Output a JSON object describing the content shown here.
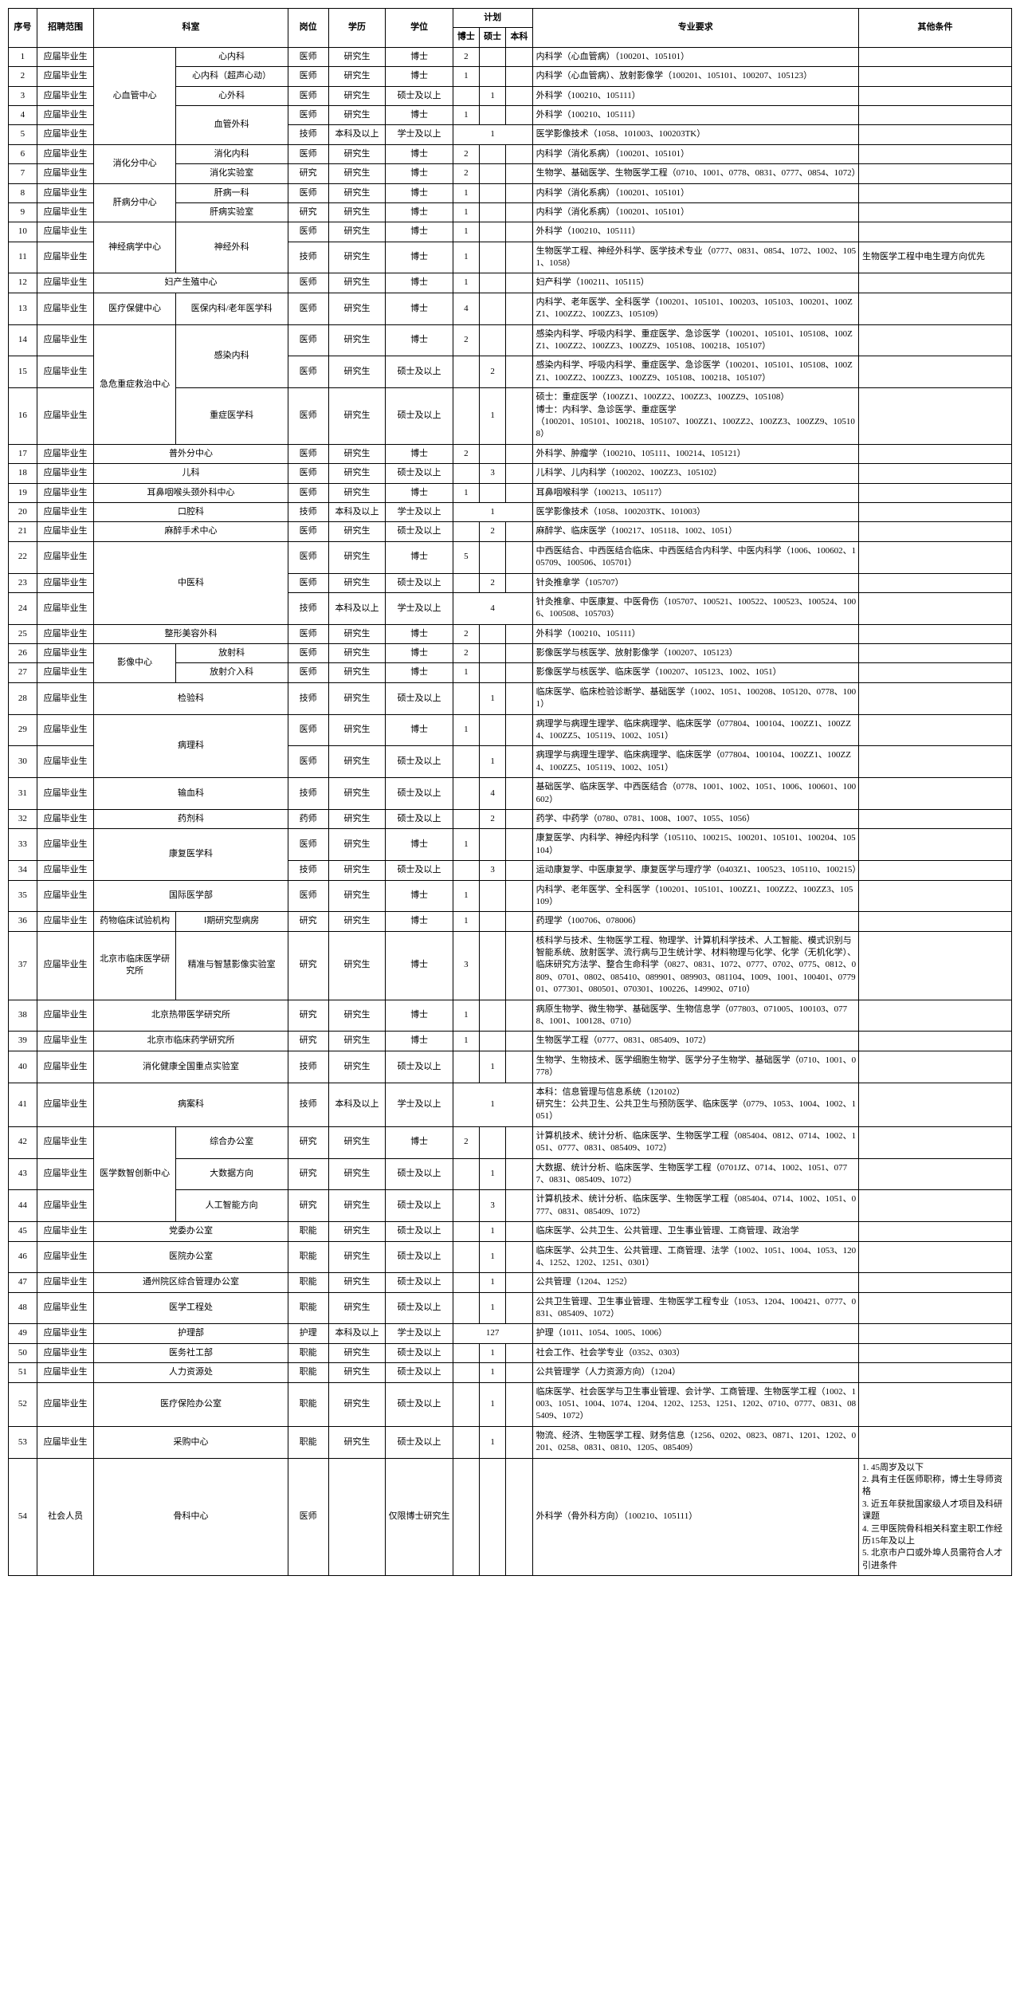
{
  "headers": {
    "seq": "序号",
    "scope": "招聘范围",
    "dept": "科室",
    "post": "岗位",
    "edu": "学历",
    "degree": "学位",
    "plan": "计划",
    "phd": "博士",
    "ms": "硕士",
    "bs": "本科",
    "req": "专业要求",
    "other": "其他条件"
  },
  "rows": [
    {
      "n": "1",
      "scope": "应届毕业生",
      "dept_main": "心血管中心",
      "dept_sub": "心内科",
      "post": "医师",
      "edu": "研究生",
      "deg": "博士",
      "phd": "2",
      "ms": "",
      "bs": "",
      "req": "内科学（心血管病）（100201、105101）",
      "other": ""
    },
    {
      "n": "2",
      "scope": "应届毕业生",
      "dept_sub": "心内科（超声心动）",
      "post": "医师",
      "edu": "研究生",
      "deg": "博士",
      "phd": "1",
      "ms": "",
      "bs": "",
      "req": "内科学（心血管病）、放射影像学（100201、105101、100207、105123）",
      "other": ""
    },
    {
      "n": "3",
      "scope": "应届毕业生",
      "dept_sub": "心外科",
      "post": "医师",
      "edu": "研究生",
      "deg": "硕士及以上",
      "phd": "",
      "ms": "1",
      "bs": "",
      "req": "外科学（100210、105111）",
      "other": ""
    },
    {
      "n": "4",
      "scope": "应届毕业生",
      "dept_sub": "血管外科",
      "post": "医师",
      "edu": "研究生",
      "deg": "博士",
      "phd": "1",
      "ms": "",
      "bs": "",
      "req": "外科学（100210、105111）",
      "other": ""
    },
    {
      "n": "5",
      "scope": "应届毕业生",
      "dept_sub": "",
      "post": "技师",
      "edu": "本科及以上",
      "deg": "学士及以上",
      "plan_merge": "1",
      "req": "医学影像技术（1058、101003、100203TK）",
      "other": ""
    },
    {
      "n": "6",
      "scope": "应届毕业生",
      "dept_main": "消化分中心",
      "dept_sub": "消化内科",
      "post": "医师",
      "edu": "研究生",
      "deg": "博士",
      "phd": "2",
      "ms": "",
      "bs": "",
      "req": "内科学（消化系病）（100201、105101）",
      "other": ""
    },
    {
      "n": "7",
      "scope": "应届毕业生",
      "dept_sub": "消化实验室",
      "post": "研究",
      "edu": "研究生",
      "deg": "博士",
      "phd": "2",
      "ms": "",
      "bs": "",
      "req": "生物学、基础医学、生物医学工程（0710、1001、0778、0831、0777、0854、1072）",
      "other": ""
    },
    {
      "n": "8",
      "scope": "应届毕业生",
      "dept_main": "肝病分中心",
      "dept_sub": "肝病一科",
      "post": "医师",
      "edu": "研究生",
      "deg": "博士",
      "phd": "1",
      "ms": "",
      "bs": "",
      "req": "内科学（消化系病）（100201、105101）",
      "other": ""
    },
    {
      "n": "9",
      "scope": "应届毕业生",
      "dept_sub": "肝病实验室",
      "post": "研究",
      "edu": "研究生",
      "deg": "博士",
      "phd": "1",
      "ms": "",
      "bs": "",
      "req": "内科学（消化系病）（100201、105101）",
      "other": ""
    },
    {
      "n": "10",
      "scope": "应届毕业生",
      "dept_main": "神经病学中心",
      "dept_sub": "神经外科",
      "post": "医师",
      "edu": "研究生",
      "deg": "博士",
      "phd": "1",
      "ms": "",
      "bs": "",
      "req": "外科学（100210、105111）",
      "other": ""
    },
    {
      "n": "11",
      "scope": "应届毕业生",
      "dept_sub": "",
      "post": "技师",
      "edu": "研究生",
      "deg": "博士",
      "phd": "1",
      "ms": "",
      "bs": "",
      "req": "生物医学工程、神经外科学、医学技术专业（0777、0831、0854、1072、1002、1051、1058）",
      "other": "生物医学工程中电生理方向优先"
    },
    {
      "n": "12",
      "scope": "应届毕业生",
      "dept_full": "妇产生殖中心",
      "post": "医师",
      "edu": "研究生",
      "deg": "博士",
      "phd": "1",
      "ms": "",
      "bs": "",
      "req": "妇产科学（100211、105115）",
      "other": ""
    },
    {
      "n": "13",
      "scope": "应届毕业生",
      "dept_main": "医疗保健中心",
      "dept_sub": "医保内科/老年医学科",
      "post": "医师",
      "edu": "研究生",
      "deg": "博士",
      "phd": "4",
      "ms": "",
      "bs": "",
      "req": "内科学、老年医学、全科医学（100201、105101、100203、105103、100201、100ZZ1、100ZZ2、100ZZ3、105109）",
      "other": ""
    },
    {
      "n": "14",
      "scope": "应届毕业生",
      "dept_main": "急危重症救治中心",
      "dept_sub": "感染内科",
      "post": "医师",
      "edu": "研究生",
      "deg": "博士",
      "phd": "2",
      "ms": "",
      "bs": "",
      "req": "感染内科学、呼吸内科学、重症医学、急诊医学（100201、105101、105108、100ZZ1、100ZZ2、100ZZ3、100ZZ9、105108、100218、105107）",
      "other": ""
    },
    {
      "n": "15",
      "scope": "应届毕业生",
      "dept_sub": "",
      "post": "医师",
      "edu": "研究生",
      "deg": "硕士及以上",
      "phd": "",
      "ms": "2",
      "bs": "",
      "req": "感染内科学、呼吸内科学、重症医学、急诊医学（100201、105101、105108、100ZZ1、100ZZ2、100ZZ3、100ZZ9、105108、100218、105107）",
      "other": ""
    },
    {
      "n": "16",
      "scope": "应届毕业生",
      "dept_sub": "重症医学科",
      "post": "医师",
      "edu": "研究生",
      "deg": "硕士及以上",
      "phd": "",
      "ms": "1",
      "bs": "",
      "req": "硕士：重症医学（100ZZ1、100ZZ2、100ZZ3、100ZZ9、105108）\n博士：内科学、急诊医学、重症医学\n（100201、105101、100218、105107、100ZZ1、100ZZ2、100ZZ3、100ZZ9、105108）",
      "other": ""
    },
    {
      "n": "17",
      "scope": "应届毕业生",
      "dept_full": "普外分中心",
      "post": "医师",
      "edu": "研究生",
      "deg": "博士",
      "phd": "2",
      "ms": "",
      "bs": "",
      "req": "外科学、肿瘤学（100210、105111、100214、105121）",
      "other": ""
    },
    {
      "n": "18",
      "scope": "应届毕业生",
      "dept_full": "儿科",
      "post": "医师",
      "edu": "研究生",
      "deg": "硕士及以上",
      "phd": "",
      "ms": "3",
      "bs": "",
      "req": "儿科学、儿内科学（100202、100ZZ3、105102）",
      "other": ""
    },
    {
      "n": "19",
      "scope": "应届毕业生",
      "dept_full": "耳鼻咽喉头颈外科中心",
      "post": "医师",
      "edu": "研究生",
      "deg": "博士",
      "phd": "1",
      "ms": "",
      "bs": "",
      "req": "耳鼻咽喉科学（100213、105117）",
      "other": ""
    },
    {
      "n": "20",
      "scope": "应届毕业生",
      "dept_full": "口腔科",
      "post": "技师",
      "edu": "本科及以上",
      "deg": "学士及以上",
      "plan_merge": "1",
      "req": "医学影像技术（1058、100203TK、101003）",
      "other": ""
    },
    {
      "n": "21",
      "scope": "应届毕业生",
      "dept_full": "麻醉手术中心",
      "post": "医师",
      "edu": "研究生",
      "deg": "硕士及以上",
      "phd": "",
      "ms": "2",
      "bs": "",
      "req": "麻醉学、临床医学（100217、105118、1002、1051）",
      "other": ""
    },
    {
      "n": "22",
      "scope": "应届毕业生",
      "dept_full": "中医科",
      "post": "医师",
      "edu": "研究生",
      "deg": "博士",
      "phd": "5",
      "ms": "",
      "bs": "",
      "req": "中西医结合、中西医结合临床、中西医结合内科学、中医内科学（1006、100602、105709、100506、105701）",
      "other": ""
    },
    {
      "n": "23",
      "scope": "应届毕业生",
      "post": "医师",
      "edu": "研究生",
      "deg": "硕士及以上",
      "phd": "",
      "ms": "2",
      "bs": "",
      "req": "针灸推拿学（105707）",
      "other": ""
    },
    {
      "n": "24",
      "scope": "应届毕业生",
      "post": "技师",
      "edu": "本科及以上",
      "deg": "学士及以上",
      "plan_merge": "4",
      "req": "针灸推拿、中医康复、中医骨伤（105707、100521、100522、100523、100524、1006、100508、105703）",
      "other": ""
    },
    {
      "n": "25",
      "scope": "应届毕业生",
      "dept_full": "整形美容外科",
      "post": "医师",
      "edu": "研究生",
      "deg": "博士",
      "phd": "2",
      "ms": "",
      "bs": "",
      "req": "外科学（100210、105111）",
      "other": ""
    },
    {
      "n": "26",
      "scope": "应届毕业生",
      "dept_main": "影像中心",
      "dept_sub": "放射科",
      "post": "医师",
      "edu": "研究生",
      "deg": "博士",
      "phd": "2",
      "ms": "",
      "bs": "",
      "req": "影像医学与核医学、放射影像学（100207、105123）",
      "other": ""
    },
    {
      "n": "27",
      "scope": "应届毕业生",
      "dept_sub": "放射介入科",
      "post": "医师",
      "edu": "研究生",
      "deg": "博士",
      "phd": "1",
      "ms": "",
      "bs": "",
      "req": "影像医学与核医学、临床医学（100207、105123、1002、1051）",
      "other": ""
    },
    {
      "n": "28",
      "scope": "应届毕业生",
      "dept_full": "检验科",
      "post": "技师",
      "edu": "研究生",
      "deg": "硕士及以上",
      "phd": "",
      "ms": "1",
      "bs": "",
      "req": "临床医学、临床检验诊断学、基础医学（1002、1051、100208、105120、0778、1001）",
      "other": ""
    },
    {
      "n": "29",
      "scope": "应届毕业生",
      "dept_full": "病理科",
      "post": "医师",
      "edu": "研究生",
      "deg": "博士",
      "phd": "1",
      "ms": "",
      "bs": "",
      "req": "病理学与病理生理学、临床病理学、临床医学（077804、100104、100ZZ1、100ZZ4、100ZZ5、105119、1002、1051）",
      "other": ""
    },
    {
      "n": "30",
      "scope": "应届毕业生",
      "post": "医师",
      "edu": "研究生",
      "deg": "硕士及以上",
      "phd": "",
      "ms": "1",
      "bs": "",
      "req": "病理学与病理生理学、临床病理学、临床医学（077804、100104、100ZZ1、100ZZ4、100ZZ5、105119、1002、1051）",
      "other": ""
    },
    {
      "n": "31",
      "scope": "应届毕业生",
      "dept_full": "输血科",
      "post": "技师",
      "edu": "研究生",
      "deg": "硕士及以上",
      "phd": "",
      "ms": "4",
      "bs": "",
      "req": "基础医学、临床医学、中西医结合（0778、1001、1002、1051、1006、100601、100602）",
      "other": ""
    },
    {
      "n": "32",
      "scope": "应届毕业生",
      "dept_full": "药剂科",
      "post": "药师",
      "edu": "研究生",
      "deg": "硕士及以上",
      "phd": "",
      "ms": "2",
      "bs": "",
      "req": "药学、中药学（0780、0781、1008、1007、1055、1056）",
      "other": ""
    },
    {
      "n": "33",
      "scope": "应届毕业生",
      "dept_full": "康复医学科",
      "post": "医师",
      "edu": "研究生",
      "deg": "博士",
      "phd": "1",
      "ms": "",
      "bs": "",
      "req": "康复医学、内科学、神经内科学（105110、100215、100201、105101、100204、105104）",
      "other": ""
    },
    {
      "n": "34",
      "scope": "应届毕业生",
      "post": "技师",
      "edu": "研究生",
      "deg": "硕士及以上",
      "phd": "",
      "ms": "3",
      "bs": "",
      "req": "运动康复学、中医康复学、康复医学与理疗学（0403Z1、100523、105110、100215）",
      "other": ""
    },
    {
      "n": "35",
      "scope": "应届毕业生",
      "dept_full": "国际医学部",
      "post": "医师",
      "edu": "研究生",
      "deg": "博士",
      "phd": "1",
      "ms": "",
      "bs": "",
      "req": "内科学、老年医学、全科医学（100201、105101、100ZZ1、100ZZ2、100ZZ3、105109）",
      "other": ""
    },
    {
      "n": "36",
      "scope": "应届毕业生",
      "dept_main": "药物临床试验机构",
      "dept_sub": "Ⅰ期研究型病房",
      "post": "研究",
      "edu": "研究生",
      "deg": "博士",
      "phd": "1",
      "ms": "",
      "bs": "",
      "req": "药理学（100706、078006）",
      "other": ""
    },
    {
      "n": "37",
      "scope": "应届毕业生",
      "dept_main": "北京市临床医学研究所",
      "dept_sub": "精准与智慧影像实验室",
      "post": "研究",
      "edu": "研究生",
      "deg": "博士",
      "phd": "3",
      "ms": "",
      "bs": "",
      "req": "核科学与技术、生物医学工程、物理学、计算机科学技术、人工智能、模式识别与智能系统、放射医学、流行病与卫生统计学、材料物理与化学、化学（无机化学）、临床研究方法学、整合生命科学（0827、0831、1072、0777、0702、0775、0812、0809、0701、0802、085410、089901、089903、081104、1009、1001、100401、077901、077301、080501、070301、100226、149902、0710）",
      "other": ""
    },
    {
      "n": "38",
      "scope": "应届毕业生",
      "dept_full": "北京热带医学研究所",
      "post": "研究",
      "edu": "研究生",
      "deg": "博士",
      "phd": "1",
      "ms": "",
      "bs": "",
      "req": "病原生物学、微生物学、基础医学、生物信息学（077803、071005、100103、0778、1001、100128、0710）",
      "other": ""
    },
    {
      "n": "39",
      "scope": "应届毕业生",
      "dept_full": "北京市临床药学研究所",
      "post": "研究",
      "edu": "研究生",
      "deg": "博士",
      "phd": "1",
      "ms": "",
      "bs": "",
      "req": "生物医学工程（0777、0831、085409、1072）",
      "other": ""
    },
    {
      "n": "40",
      "scope": "应届毕业生",
      "dept_full": "消化健康全国重点实验室",
      "post": "技师",
      "edu": "研究生",
      "deg": "硕士及以上",
      "phd": "",
      "ms": "1",
      "bs": "",
      "req": "生物学、生物技术、医学细胞生物学、医学分子生物学、基础医学（0710、1001、0778）",
      "other": ""
    },
    {
      "n": "41",
      "scope": "应届毕业生",
      "dept_full": "病案科",
      "post": "技师",
      "edu": "本科及以上",
      "deg": "学士及以上",
      "plan_merge": "1",
      "req": "本科：信息管理与信息系统（120102）\n研究生：公共卫生、公共卫生与预防医学、临床医学（0779、1053、1004、1002、1051）",
      "other": ""
    },
    {
      "n": "42",
      "scope": "应届毕业生",
      "dept_main": "医学数智创新中心",
      "dept_sub": "综合办公室",
      "post": "研究",
      "edu": "研究生",
      "deg": "博士",
      "phd": "2",
      "ms": "",
      "bs": "",
      "req": "计算机技术、统计分析、临床医学、生物医学工程（085404、0812、0714、1002、1051、0777、0831、085409、1072）",
      "other": ""
    },
    {
      "n": "43",
      "scope": "应届毕业生",
      "dept_sub": "大数据方向",
      "post": "研究",
      "edu": "研究生",
      "deg": "硕士及以上",
      "phd": "",
      "ms": "1",
      "bs": "",
      "req": "大数据、统计分析、临床医学、生物医学工程（0701JZ、0714、1002、1051、0777、0831、085409、1072）",
      "other": ""
    },
    {
      "n": "44",
      "scope": "应届毕业生",
      "dept_sub": "人工智能方向",
      "post": "研究",
      "edu": "研究生",
      "deg": "硕士及以上",
      "phd": "",
      "ms": "3",
      "bs": "",
      "req": "计算机技术、统计分析、临床医学、生物医学工程（085404、0714、1002、1051、0777、0831、085409、1072）",
      "other": ""
    },
    {
      "n": "45",
      "scope": "应届毕业生",
      "dept_full": "党委办公室",
      "post": "职能",
      "edu": "研究生",
      "deg": "硕士及以上",
      "phd": "",
      "ms": "1",
      "bs": "",
      "req": "临床医学、公共卫生、公共管理、卫生事业管理、工商管理、政治学",
      "other": ""
    },
    {
      "n": "46",
      "scope": "应届毕业生",
      "dept_full": "医院办公室",
      "post": "职能",
      "edu": "研究生",
      "deg": "硕士及以上",
      "phd": "",
      "ms": "1",
      "bs": "",
      "req": "临床医学、公共卫生、公共管理、工商管理、法学（1002、1051、1004、1053、1204、1252、1202、1251、0301）",
      "other": ""
    },
    {
      "n": "47",
      "scope": "应届毕业生",
      "dept_full": "通州院区综合管理办公室",
      "post": "职能",
      "edu": "研究生",
      "deg": "硕士及以上",
      "phd": "",
      "ms": "1",
      "bs": "",
      "req": "公共管理（1204、1252）",
      "other": ""
    },
    {
      "n": "48",
      "scope": "应届毕业生",
      "dept_full": "医学工程处",
      "post": "职能",
      "edu": "研究生",
      "deg": "硕士及以上",
      "phd": "",
      "ms": "1",
      "bs": "",
      "req": "公共卫生管理、卫生事业管理、生物医学工程专业（1053、1204、100421、0777、0831、085409、1072）",
      "other": ""
    },
    {
      "n": "49",
      "scope": "应届毕业生",
      "dept_full": "护理部",
      "post": "护理",
      "edu": "本科及以上",
      "deg": "学士及以上",
      "plan_merge": "127",
      "req": "护理（1011、1054、1005、1006）",
      "other": ""
    },
    {
      "n": "50",
      "scope": "应届毕业生",
      "dept_full": "医务社工部",
      "post": "职能",
      "edu": "研究生",
      "deg": "硕士及以上",
      "phd": "",
      "ms": "1",
      "bs": "",
      "req": "社会工作、社会学专业（0352、0303）",
      "other": ""
    },
    {
      "n": "51",
      "scope": "应届毕业生",
      "dept_full": "人力资源处",
      "post": "职能",
      "edu": "研究生",
      "deg": "硕士及以上",
      "phd": "",
      "ms": "1",
      "bs": "",
      "req": "公共管理学（人力资源方向）（1204）",
      "other": ""
    },
    {
      "n": "52",
      "scope": "应届毕业生",
      "dept_full": "医疗保险办公室",
      "post": "职能",
      "edu": "研究生",
      "deg": "硕士及以上",
      "phd": "",
      "ms": "1",
      "bs": "",
      "req": "临床医学、社会医学与卫生事业管理、会计学、工商管理、生物医学工程（1002、1003、1051、1004、1074、1204、1202、1253、1251、1202、0710、0777、0831、085409、1072）",
      "other": ""
    },
    {
      "n": "53",
      "scope": "应届毕业生",
      "dept_full": "采购中心",
      "post": "职能",
      "edu": "研究生",
      "deg": "硕士及以上",
      "phd": "",
      "ms": "1",
      "bs": "",
      "req": "物流、经济、生物医学工程、财务信息（1256、0202、0823、0871、1201、1202、0201、0258、0831、0810、1205、085409）",
      "other": ""
    },
    {
      "n": "54",
      "scope": "社会人员",
      "dept_full": "骨科中心",
      "post": "医师",
      "edu": "",
      "deg": "仅限博士研究生",
      "phd": "",
      "ms": "",
      "bs": "",
      "req": "外科学（骨外科方向）（100210、105111）",
      "other": "1. 45周岁及以下\n2. 具有主任医师职称，博士生导师资格\n3. 近五年获批国家级人才项目及科研课题\n4. 三甲医院骨科相关科室主职工作经历15年及以上\n5. 北京市户口或外埠人员需符合人才引进条件"
    }
  ]
}
